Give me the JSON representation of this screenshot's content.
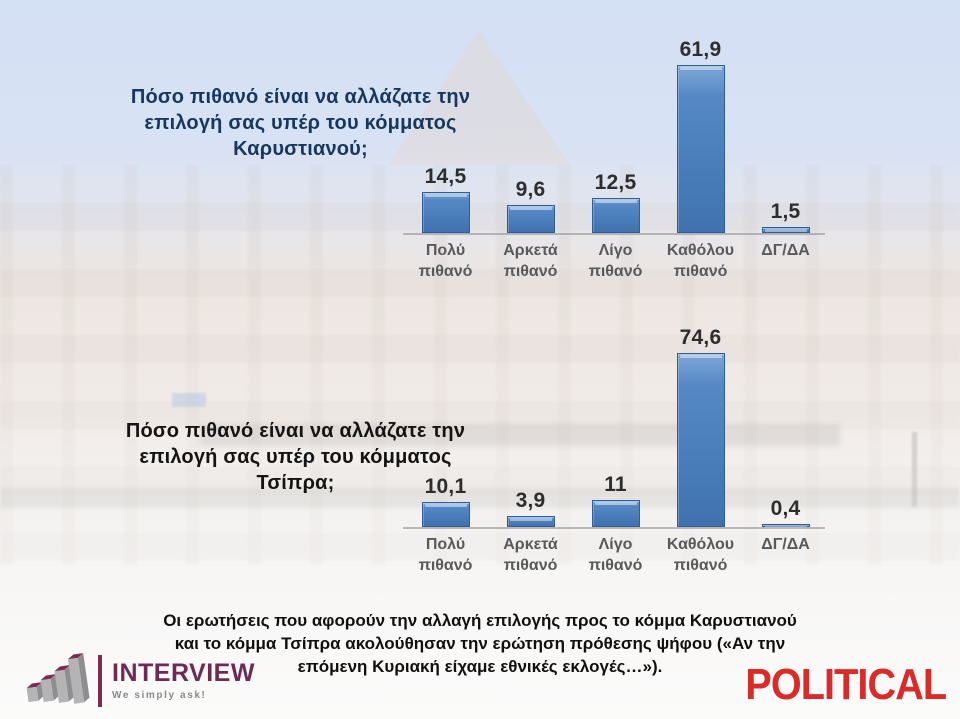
{
  "chart_data": [
    {
      "type": "bar",
      "title": "Πόσο πιθανό είναι να αλλάζατε την\nεπιλογή σας υπέρ του κόμματος\nΚαρυστιανού;",
      "categories": [
        "Πολύ πιθανό",
        "Αρκετά πιθανό",
        "Λίγο πιθανό",
        "Καθόλου πιθανό",
        "ΔΓ/ΔΑ"
      ],
      "values": [
        14.5,
        9.6,
        12.5,
        61.9,
        1.5
      ],
      "value_labels": [
        "14,5",
        "9,6",
        "12,5",
        "61,9",
        "1,5"
      ],
      "ylim": [
        0,
        65
      ],
      "grid": false,
      "legend": false,
      "data_labels": true,
      "bar_color": "#4f81bd",
      "bar_border_color": "#2e5d97",
      "title_color": "#17375e",
      "category_color": "#58595b",
      "value_label_color": "#2d2d2d"
    },
    {
      "type": "bar",
      "title": "Πόσο πιθανό είναι να αλλάζατε την\nεπιλογή σας υπέρ του κόμματος\nΤσίπρα;",
      "categories": [
        "Πολύ πιθανό",
        "Αρκετά πιθανό",
        "Λίγο πιθανό",
        "Καθόλου πιθανό",
        "ΔΓ/ΔΑ"
      ],
      "values": [
        10.1,
        3.9,
        11,
        74.6,
        0.4
      ],
      "value_labels": [
        "10,1",
        "3,9",
        "11",
        "74,6",
        "0,4"
      ],
      "ylim": [
        0,
        80
      ],
      "grid": false,
      "legend": false,
      "data_labels": true,
      "bar_color": "#4f81bd",
      "bar_border_color": "#2e5d97",
      "title_color": "#141414",
      "category_color": "#58595b",
      "value_label_color": "#2d2d2d"
    }
  ],
  "footnote": "Οι ερωτήσεις που αφορούν την αλλαγή επιλογής προς το κόμμα Καρυστιανού\nκαι το κόμμα Τσίπρα ακολούθησαν την ερώτηση πρόθεσης ψήφου («Αν την\nεπόμενη Κυριακή είχαμε εθνικές εκλογές…»).",
  "logos": {
    "interview": {
      "name": "INTERVIEW",
      "tagline": "We simply ask!",
      "color": "#6f2a54"
    },
    "political": {
      "name": "POLITICAL",
      "color": "#da2b28"
    }
  },
  "background": {
    "subject": "Hellenic Parliament building, faded photo",
    "sky_color": "#cbd9f2",
    "building_color": "#e9ddd5"
  }
}
